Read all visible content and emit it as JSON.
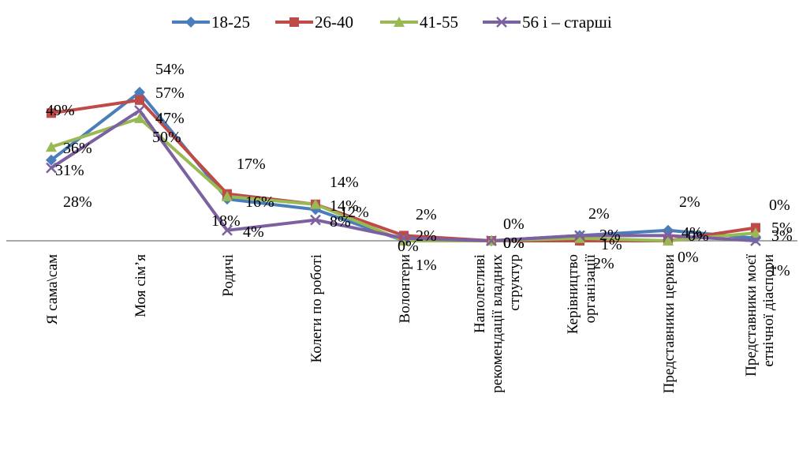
{
  "chart_data": {
    "type": "line",
    "title": "",
    "xlabel": "",
    "ylabel": "",
    "ylim": [
      0,
      60
    ],
    "grid": false,
    "legend_position": "top",
    "categories": [
      [
        "Я сама\\сам"
      ],
      [
        "Моя сім’я"
      ],
      [
        "Родичі"
      ],
      [
        "Колеги по роботі"
      ],
      [
        "Волонтери"
      ],
      [
        "Наполегливі",
        "рекомендації владних",
        "структур"
      ],
      [
        "Керівництво",
        "організації"
      ],
      [
        "Представники церкви"
      ],
      [
        "Представники моєї",
        "етнічної діаспори"
      ]
    ],
    "series": [
      {
        "name": "18-25",
        "color": "#4a7ebb",
        "marker": "diamond",
        "values": [
          31,
          57,
          16,
          12,
          0,
          0,
          2,
          4,
          1
        ]
      },
      {
        "name": "26-40",
        "color": "#be4b48",
        "marker": "square",
        "values": [
          49,
          54,
          18,
          14,
          2,
          0,
          0,
          0,
          5
        ]
      },
      {
        "name": "41-55",
        "color": "#98b954",
        "marker": "triangle",
        "values": [
          36,
          47,
          17,
          14,
          0,
          0,
          1,
          0,
          3
        ]
      },
      {
        "name": "56 і – старші",
        "color": "#7d60a0",
        "marker": "x",
        "values": [
          28,
          50,
          4,
          8,
          1,
          0,
          2,
          2,
          0
        ]
      }
    ],
    "point_labels": [
      [
        "36%",
        "31%",
        "28%",
        "49%"
      ],
      [
        "54%",
        "57%",
        "47%",
        "50%"
      ],
      [
        "17%",
        "18%",
        "16%",
        "4%"
      ],
      [
        "14%",
        "14%",
        "12%",
        "8%"
      ],
      [
        "2%",
        "2%",
        "0%",
        "1%"
      ],
      [
        "0%",
        "0%",
        "0%",
        "0%"
      ],
      [
        "2%",
        "2%",
        "1%",
        "2%"
      ],
      [
        "2%",
        "4%",
        "0%",
        "0%"
      ],
      [
        "0%",
        "5%",
        "3%",
        "1%"
      ]
    ]
  }
}
